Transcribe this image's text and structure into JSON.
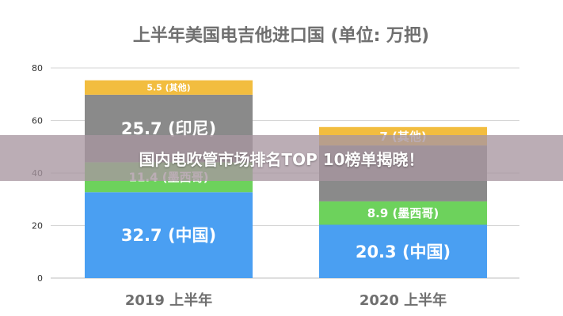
{
  "banner": {
    "text": "国内电吹管市场排名TOP 10榜单揭晓！"
  },
  "chart_data": {
    "type": "bar",
    "stacked": true,
    "title": "上半年美国电吉他进口国 (单位: 万把)",
    "categories": [
      "2019 上半年",
      "2020 上半年"
    ],
    "ylim": [
      0,
      80
    ],
    "yticks": [
      0,
      20,
      40,
      60,
      80
    ],
    "grid": true,
    "series": [
      {
        "name": "中国",
        "color": "#4a9ff2",
        "values": [
          32.7,
          20.3
        ],
        "labels": [
          "32.7  (中国)",
          "20.3  (中国)"
        ]
      },
      {
        "name": "墨西哥",
        "color": "#6dd25c",
        "values": [
          11.4,
          8.9
        ],
        "labels": [
          "11.4 (墨西哥)",
          "8.9 (墨西哥)"
        ]
      },
      {
        "name": "印尼",
        "color": "#8a8a8a",
        "values": [
          25.7,
          21.3
        ],
        "labels": [
          "25.7 (印尼)",
          ""
        ]
      },
      {
        "name": "其他",
        "color": "#f2bd3f",
        "values": [
          5.5,
          7
        ],
        "labels": [
          "5.5 (其他)",
          "7 (其他)"
        ]
      }
    ]
  }
}
